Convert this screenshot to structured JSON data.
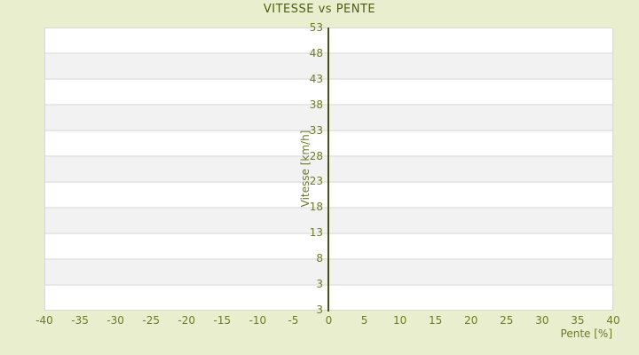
{
  "title": "VITESSE vs PENTE",
  "colors": {
    "page_background": "#e9efce",
    "band_light": "#ffffff",
    "band_dark": "#f2f2f2",
    "band_separator": "#e7e7e7",
    "plot_border": "#d8d8d8",
    "zero_axis_line": "#47530e",
    "title_text": "#4e5c12",
    "tick_text": "#6d7a26"
  },
  "chart_data": {
    "type": "scatter",
    "title": "VITESSE vs PENTE",
    "xlabel": "Pente [%]",
    "ylabel": "Vitesse [km/h]",
    "xlim": [
      -40,
      40
    ],
    "x_ticks": [
      -40,
      -35,
      -30,
      -25,
      -20,
      -15,
      -10,
      -5,
      0,
      5,
      10,
      15,
      20,
      25,
      30,
      35,
      40
    ],
    "y_tick_labels": [
      "53",
      "48",
      "43",
      "38",
      "33",
      "28",
      "23",
      "18",
      "13",
      "8",
      "3",
      "3"
    ],
    "grid": "horizontal-alternating-bands",
    "vertical_zero_axis": true,
    "legend": "none",
    "series": []
  }
}
